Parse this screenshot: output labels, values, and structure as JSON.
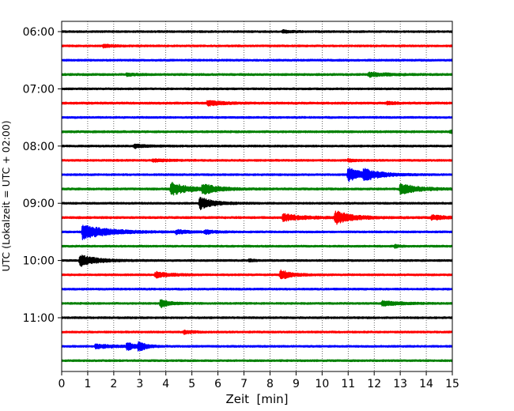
{
  "chart_data": {
    "type": "line",
    "xlabel": "Zeit  [min]",
    "ylabel": "UTC (Lokalzeit = UTC + 02:00)",
    "xlim": [
      0,
      15
    ],
    "x_ticks": [
      0,
      1,
      2,
      3,
      4,
      5,
      6,
      7,
      8,
      9,
      10,
      11,
      12,
      13,
      14,
      15
    ],
    "y_tick_labels": [
      "06:00",
      "07:00",
      "08:00",
      "09:00",
      "10:00",
      "11:00"
    ],
    "y_tick_rows": [
      0,
      4,
      8,
      12,
      16,
      20
    ],
    "grid": "vertical dotted",
    "colors": [
      "#000000",
      "#ff0000",
      "#0000ff",
      "#008000"
    ],
    "trace_interval_min": 15,
    "rows": [
      {
        "start": "06:00",
        "color": "#000000",
        "noise": 1.0,
        "events": [
          {
            "t": 8.5,
            "amp": 1.5,
            "dur": 0.3
          }
        ]
      },
      {
        "start": "06:15",
        "color": "#ff0000",
        "noise": 1.0,
        "events": [
          {
            "t": 1.6,
            "amp": 1.6,
            "dur": 0.4
          }
        ]
      },
      {
        "start": "06:30",
        "color": "#0000ff",
        "noise": 1.0,
        "events": []
      },
      {
        "start": "06:45",
        "color": "#008000",
        "noise": 1.1,
        "events": [
          {
            "t": 2.5,
            "amp": 1.6,
            "dur": 0.3
          },
          {
            "t": 11.8,
            "amp": 2.4,
            "dur": 0.6
          }
        ]
      },
      {
        "start": "07:00",
        "color": "#000000",
        "noise": 1.0,
        "events": []
      },
      {
        "start": "07:15",
        "color": "#ff0000",
        "noise": 1.1,
        "events": [
          {
            "t": 5.6,
            "amp": 3.0,
            "dur": 0.5
          },
          {
            "t": 12.5,
            "amp": 1.4,
            "dur": 0.3
          }
        ]
      },
      {
        "start": "07:30",
        "color": "#0000ff",
        "noise": 1.0,
        "events": []
      },
      {
        "start": "07:45",
        "color": "#008000",
        "noise": 1.1,
        "events": [
          {
            "t": 14.9,
            "amp": 1.5,
            "dur": 0.2
          }
        ]
      },
      {
        "start": "08:00",
        "color": "#000000",
        "noise": 1.0,
        "events": [
          {
            "t": 2.8,
            "amp": 2.2,
            "dur": 0.4
          }
        ]
      },
      {
        "start": "08:15",
        "color": "#ff0000",
        "noise": 1.0,
        "events": [
          {
            "t": 3.5,
            "amp": 1.6,
            "dur": 0.5
          },
          {
            "t": 11.0,
            "amp": 1.4,
            "dur": 0.3
          }
        ]
      },
      {
        "start": "08:30",
        "color": "#0000ff",
        "noise": 1.0,
        "events": [
          {
            "t": 11.0,
            "amp": 9.0,
            "dur": 0.5
          },
          {
            "t": 11.6,
            "amp": 5.5,
            "dur": 0.6
          }
        ]
      },
      {
        "start": "08:45",
        "color": "#008000",
        "noise": 1.1,
        "events": [
          {
            "t": 4.2,
            "amp": 8.0,
            "dur": 0.6
          },
          {
            "t": 5.4,
            "amp": 6.0,
            "dur": 0.5
          },
          {
            "t": 13.0,
            "amp": 6.5,
            "dur": 0.6
          }
        ]
      },
      {
        "start": "09:00",
        "color": "#000000",
        "noise": 1.0,
        "events": [
          {
            "t": 5.3,
            "amp": 7.5,
            "dur": 0.5
          }
        ]
      },
      {
        "start": "09:15",
        "color": "#ff0000",
        "noise": 1.1,
        "events": [
          {
            "t": 8.5,
            "amp": 4.0,
            "dur": 0.7
          },
          {
            "t": 10.5,
            "amp": 8.0,
            "dur": 0.6
          },
          {
            "t": 14.2,
            "amp": 2.5,
            "dur": 0.6
          }
        ]
      },
      {
        "start": "09:30",
        "color": "#0000ff",
        "noise": 1.0,
        "events": [
          {
            "t": 0.8,
            "amp": 9.0,
            "dur": 0.9
          },
          {
            "t": 4.4,
            "amp": 2.2,
            "dur": 0.4
          },
          {
            "t": 5.5,
            "amp": 2.5,
            "dur": 0.3
          }
        ]
      },
      {
        "start": "09:45",
        "color": "#008000",
        "noise": 1.0,
        "events": [
          {
            "t": 12.8,
            "amp": 1.8,
            "dur": 0.2
          }
        ]
      },
      {
        "start": "10:00",
        "color": "#000000",
        "noise": 1.0,
        "events": [
          {
            "t": 0.7,
            "amp": 7.0,
            "dur": 0.6
          },
          {
            "t": 7.2,
            "amp": 1.5,
            "dur": 0.2
          }
        ]
      },
      {
        "start": "10:15",
        "color": "#ff0000",
        "noise": 1.0,
        "events": [
          {
            "t": 3.6,
            "amp": 3.5,
            "dur": 0.5
          },
          {
            "t": 8.4,
            "amp": 6.0,
            "dur": 0.4
          }
        ]
      },
      {
        "start": "10:30",
        "color": "#0000ff",
        "noise": 1.0,
        "events": []
      },
      {
        "start": "10:45",
        "color": "#008000",
        "noise": 1.0,
        "events": [
          {
            "t": 3.8,
            "amp": 5.5,
            "dur": 0.3
          },
          {
            "t": 12.3,
            "amp": 3.0,
            "dur": 0.6
          }
        ]
      },
      {
        "start": "11:00",
        "color": "#000000",
        "noise": 1.0,
        "events": []
      },
      {
        "start": "11:15",
        "color": "#ff0000",
        "noise": 1.0,
        "events": [
          {
            "t": 4.7,
            "amp": 2.0,
            "dur": 0.3
          }
        ]
      },
      {
        "start": "11:30",
        "color": "#0000ff",
        "noise": 1.0,
        "events": [
          {
            "t": 1.3,
            "amp": 2.5,
            "dur": 0.6
          },
          {
            "t": 2.5,
            "amp": 4.5,
            "dur": 0.3
          },
          {
            "t": 2.95,
            "amp": 5.5,
            "dur": 0.25
          }
        ]
      },
      {
        "start": "11:45",
        "color": "#008000",
        "noise": 1.0,
        "events": []
      }
    ]
  }
}
